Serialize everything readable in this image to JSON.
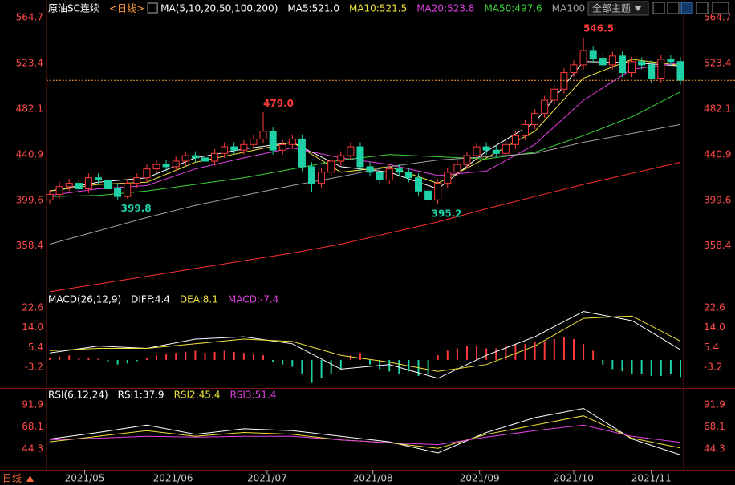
{
  "header": {
    "theme_button": "全部主题",
    "bottom_tab": "日线"
  },
  "chart_data": [
    {
      "type": "candlestick",
      "title": "原油SC连续",
      "subtitle": "<日线>",
      "indicator": "MA(5,10,20,50,100,200)",
      "up_color": "#ff3b3b",
      "down_color": "#1fd1a6",
      "xlim": [
        0,
        65
      ],
      "ylim": [
        316.2,
        571.9
      ],
      "yticks": [
        358.4,
        399.6,
        440.9,
        482.1,
        523.4,
        564.7
      ],
      "xticks": [
        {
          "value": 3.6,
          "label": "2021/05"
        },
        {
          "value": 12.7,
          "label": "2021/06"
        },
        {
          "value": 22.4,
          "label": "2021/07"
        },
        {
          "value": 33.3,
          "label": "2021/08"
        },
        {
          "value": 44.3,
          "label": "2021/09"
        },
        {
          "value": 54,
          "label": "2021/10"
        },
        {
          "value": 62,
          "label": "2021/11"
        }
      ],
      "open": [
        400,
        405,
        412,
        415,
        410,
        420,
        418,
        410,
        403,
        415,
        420,
        428,
        432,
        430,
        435,
        440,
        438,
        435,
        442,
        448,
        445,
        450,
        455,
        462,
        445,
        450,
        455,
        430,
        415,
        425,
        435,
        440,
        448,
        430,
        425,
        418,
        428,
        425,
        420,
        408,
        400,
        415,
        425,
        432,
        440,
        448,
        445,
        442,
        450,
        458,
        468,
        478,
        490,
        500,
        515,
        522,
        535,
        528,
        522,
        530,
        515,
        525,
        522,
        510,
        527,
        525
      ],
      "high": [
        409,
        416,
        419,
        419,
        424,
        424,
        422,
        414,
        419,
        424,
        432,
        436,
        436,
        439,
        444,
        444,
        442,
        446,
        452,
        452,
        454,
        459,
        479,
        466,
        454,
        459,
        459,
        434,
        429,
        439,
        444,
        452,
        452,
        434,
        429,
        432,
        432,
        429,
        424,
        412,
        419,
        429,
        436,
        444,
        452,
        452,
        449,
        454,
        462,
        472,
        482,
        494,
        504,
        519,
        526,
        546.5,
        539,
        532,
        534,
        534,
        529,
        529,
        526,
        531,
        531,
        529
      ],
      "low": [
        396,
        401,
        408,
        406,
        406,
        414,
        406,
        399.8,
        401,
        411,
        416,
        424,
        426,
        426,
        431,
        434,
        431,
        431,
        438,
        441,
        441,
        446,
        451,
        441,
        441,
        446,
        426,
        407,
        411,
        421,
        431,
        436,
        426,
        421,
        414,
        414,
        421,
        416,
        404,
        395.2,
        396,
        411,
        421,
        428,
        436,
        441,
        438,
        438,
        446,
        454,
        464,
        474,
        486,
        496,
        511,
        518,
        524,
        518,
        518,
        511,
        511,
        518,
        506,
        506,
        521,
        504
      ],
      "close": [
        405,
        412,
        415,
        410,
        420,
        418,
        410,
        403,
        415,
        420,
        428,
        432,
        430,
        435,
        440,
        438,
        435,
        442,
        448,
        445,
        450,
        455,
        462,
        445,
        450,
        455,
        430,
        415,
        425,
        435,
        440,
        448,
        430,
        425,
        418,
        428,
        425,
        420,
        408,
        400,
        415,
        425,
        432,
        440,
        448,
        445,
        442,
        450,
        458,
        468,
        478,
        490,
        500,
        515,
        522,
        535,
        528,
        522,
        530,
        515,
        525,
        522,
        510,
        527,
        525,
        508
      ],
      "series": [
        {
          "name": "MA5:521.0",
          "color": "#ffffff",
          "x": [
            0,
            5,
            10,
            15,
            20,
            25,
            30,
            35,
            40,
            45,
            50,
            55,
            60,
            65
          ],
          "values": [
            408,
            416,
            420,
            438,
            446,
            452,
            430,
            425,
            410,
            444,
            470,
            525,
            524,
            521.0
          ]
        },
        {
          "name": "MA10:521.5",
          "color": "#f0e23a",
          "x": [
            0,
            5,
            10,
            15,
            20,
            25,
            30,
            35,
            40,
            45,
            50,
            55,
            60,
            65
          ],
          "values": [
            408,
            414,
            416,
            434,
            443,
            452,
            425,
            430,
            415,
            438,
            462,
            510,
            527,
            521.5
          ]
        },
        {
          "name": "MA20:523.8",
          "color": "#e040e0",
          "x": [
            0,
            5,
            10,
            15,
            20,
            25,
            30,
            35,
            40,
            45,
            50,
            55,
            60,
            65
          ],
          "values": [
            404,
            410,
            413,
            428,
            438,
            447,
            438,
            432,
            422,
            426,
            450,
            490,
            518,
            523.8
          ]
        },
        {
          "name": "MA50:497.6",
          "color": "#3ad13a",
          "x": [
            0,
            5,
            10,
            15,
            20,
            25,
            30,
            35,
            40,
            45,
            50,
            55,
            60,
            65
          ],
          "values": [
            403,
            404,
            408,
            414,
            420,
            428,
            436,
            441,
            439,
            437,
            443,
            458,
            475,
            497.6
          ]
        },
        {
          "name": "MA100",
          "color": "#a0a0a0",
          "x": [
            0,
            5,
            10,
            15,
            20,
            25,
            30,
            35,
            40,
            45,
            50,
            55,
            60,
            65
          ],
          "values": [
            360,
            372,
            384,
            395,
            404,
            413,
            421,
            430,
            436,
            439,
            442,
            452,
            460,
            468
          ]
        },
        {
          "color": "#ff3030",
          "x": [
            0,
            5,
            10,
            15,
            20,
            25,
            30,
            35,
            40,
            45,
            50,
            55,
            60,
            65
          ],
          "values": [
            317,
            324,
            331,
            338,
            345,
            352,
            360,
            370,
            380,
            392,
            403,
            414,
            424,
            434
          ]
        }
      ],
      "annotations": [
        {
          "x": 55,
          "value": 546.5,
          "label": "546.5",
          "color": "#ff3b3b"
        },
        {
          "x": 22,
          "value": 479,
          "label": "479.0",
          "color": "#ff3b3b"
        },
        {
          "x": 7,
          "value": 399.8,
          "label": "399.8",
          "color": "#1fd1a6"
        },
        {
          "x": 39,
          "value": 395.2,
          "label": "395.2",
          "color": "#1fd1a6"
        }
      ]
    },
    {
      "type": "macd",
      "title": "MACD(26,12,9)",
      "ylim": [
        -10.8,
        28.8
      ],
      "yticks": [
        -3.2,
        5.4,
        {
          "value": 14,
          "label": "14.0"
        },
        22.6
      ],
      "series": [
        {
          "name": "DIFF:4.4",
          "color": "#ffffff",
          "x": [
            0,
            5,
            10,
            15,
            20,
            25,
            30,
            35,
            40,
            45,
            50,
            55,
            60,
            65
          ],
          "values": [
            3,
            6,
            5,
            9,
            10,
            7,
            -4,
            -2,
            -8,
            2,
            10,
            21,
            17,
            4.4
          ]
        },
        {
          "name": "DEA:8.1",
          "color": "#f0e23a",
          "x": [
            0,
            5,
            10,
            15,
            20,
            25,
            30,
            35,
            40,
            45,
            50,
            55,
            60,
            65
          ],
          "values": [
            4,
            5,
            5,
            7,
            9,
            8,
            2,
            -1,
            -5,
            -2,
            6,
            18,
            19,
            8.1
          ]
        }
      ],
      "histogram": {
        "name": "MACD:-7.4",
        "color": "#e040e0",
        "up_color": "#ff3b3b",
        "down_color": "#1fd1a6",
        "values": [
          1,
          1.5,
          2,
          1,
          1,
          0.5,
          -1,
          -2,
          -1.5,
          -0.5,
          1,
          2,
          2.5,
          3,
          3.5,
          4,
          3,
          3.5,
          4,
          3.5,
          3,
          2.5,
          2,
          -1,
          -2,
          -3,
          -6,
          -10,
          -8,
          -6,
          -4,
          2,
          3,
          -2,
          -4,
          -5,
          -6,
          -5,
          -7,
          -6,
          2,
          4,
          5,
          6,
          6,
          5,
          5,
          6,
          7,
          7,
          8,
          8,
          9,
          10,
          9,
          7,
          4,
          -2,
          -4,
          -5,
          -6,
          -6,
          -7,
          -7,
          -6,
          -7.4
        ]
      }
    },
    {
      "type": "line",
      "title": "RSI(6,12,24)",
      "ylim": [
        22.7,
        110
      ],
      "yticks": [
        44.3,
        68.1,
        91.9
      ],
      "series": [
        {
          "name": "RSI1:37.9",
          "color": "#ffffff",
          "x": [
            0,
            5,
            10,
            15,
            20,
            25,
            30,
            35,
            40,
            45,
            50,
            55,
            60,
            65
          ],
          "values": [
            55,
            62,
            70,
            60,
            66,
            64,
            58,
            52,
            40,
            62,
            78,
            88,
            55,
            37.9
          ]
        },
        {
          "name": "RSI2:45.4",
          "color": "#f0e23a",
          "x": [
            0,
            5,
            10,
            15,
            20,
            25,
            30,
            35,
            40,
            45,
            50,
            55,
            60,
            65
          ],
          "values": [
            52,
            58,
            64,
            58,
            62,
            60,
            54,
            51,
            45,
            60,
            70,
            80,
            56,
            45.4
          ]
        },
        {
          "name": "RSI3:51.4",
          "color": "#e040e0",
          "x": [
            0,
            5,
            10,
            15,
            20,
            25,
            30,
            35,
            40,
            45,
            50,
            55,
            60,
            65
          ],
          "values": [
            54,
            56,
            58,
            57,
            58,
            58,
            54,
            51,
            49,
            57,
            64,
            70,
            58,
            51.4
          ]
        }
      ]
    }
  ]
}
